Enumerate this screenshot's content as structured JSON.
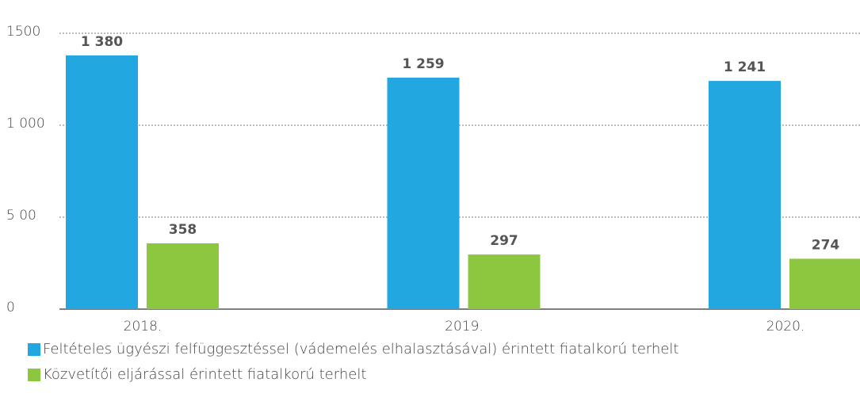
{
  "chart_data": {
    "type": "bar",
    "categories": [
      "2018.",
      "2019.",
      "2020."
    ],
    "series": [
      {
        "name": "Feltételes ügyészi felfüggesztéssel (vádemelés elhalasztásával) érintett fiatalkorú terhelt",
        "color": "#23a7e0",
        "values": [
          1380,
          1259,
          1241
        ],
        "value_labels": [
          "1 380",
          "1 259",
          "1 241"
        ]
      },
      {
        "name": "Közvetítői eljárással érintett fiatalkorú terhelt",
        "color": "#8dc63f",
        "values": [
          358,
          297,
          274
        ],
        "value_labels": [
          "358",
          "297",
          "274"
        ]
      }
    ],
    "ylim": [
      0,
      1500
    ],
    "yticks": [
      0,
      {
        "value": 500,
        "label": "5 00"
      },
      {
        "value": 1000,
        "label": "1 000"
      },
      1500
    ],
    "grid": true,
    "legend": "bottom"
  }
}
